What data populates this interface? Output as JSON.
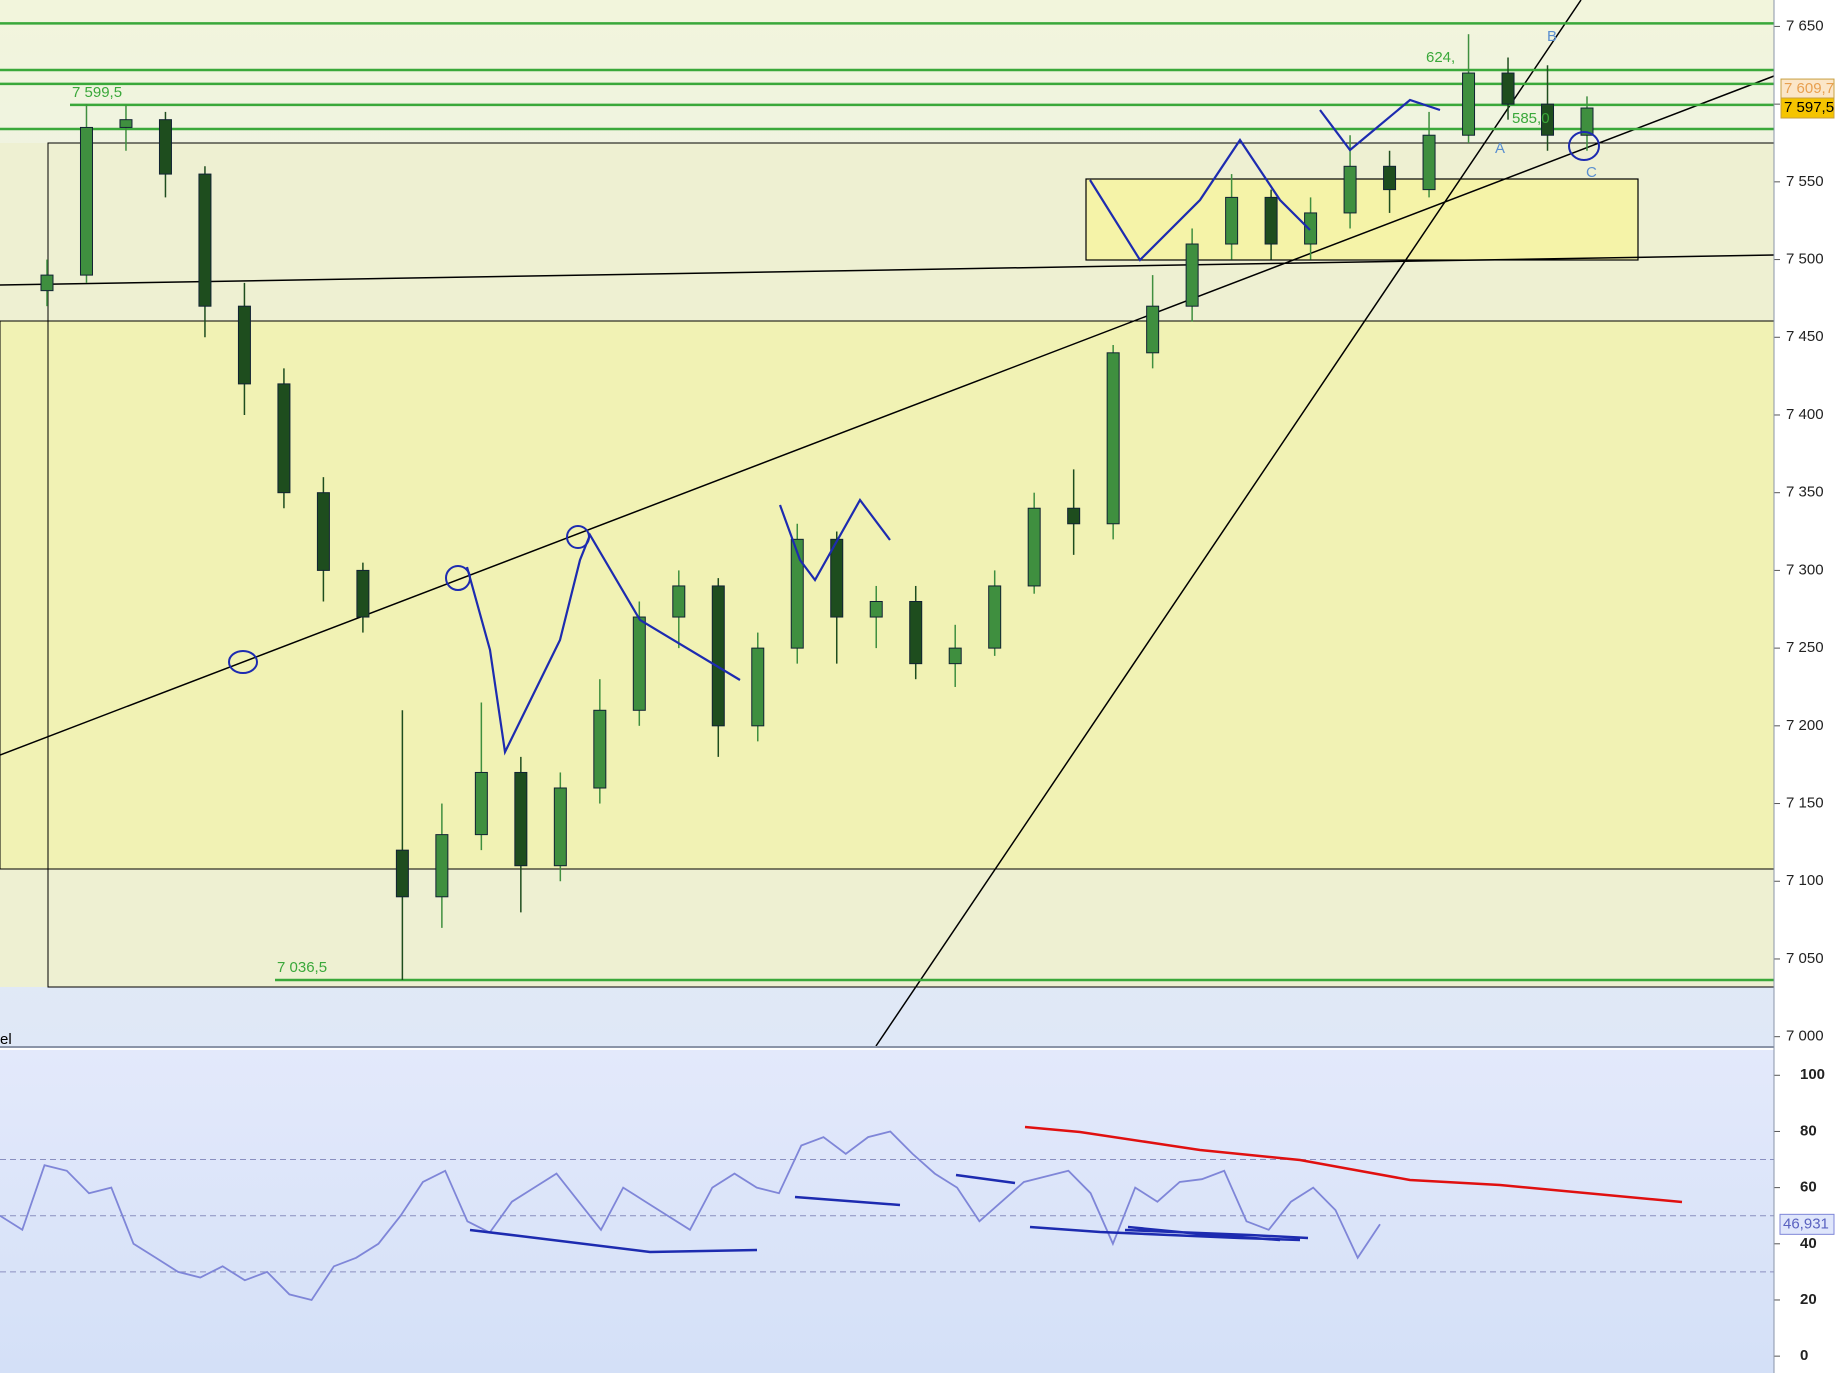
{
  "chart_data": [
    {
      "type": "candlestick",
      "open": [
        7480,
        7490,
        7585,
        7590,
        7555,
        7470,
        7420,
        7350,
        7300,
        7120,
        7090,
        7130,
        7170,
        7110,
        7160,
        7210,
        7270,
        7290,
        7200,
        7250,
        7320,
        7270,
        7280,
        7240,
        7250,
        7290,
        7340,
        7330,
        7440,
        7470,
        7510,
        7540,
        7510,
        7530,
        7560,
        7545,
        7580,
        7620,
        7600,
        7580
      ],
      "high": [
        7500,
        7600,
        7599.5,
        7595,
        7560,
        7485,
        7430,
        7360,
        7305,
        7210,
        7150,
        7215,
        7180,
        7170,
        7230,
        7280,
        7300,
        7295,
        7260,
        7330,
        7325,
        7290,
        7290,
        7265,
        7300,
        7350,
        7365,
        7445,
        7490,
        7520,
        7555,
        7545,
        7540,
        7580,
        7570,
        7595,
        7645,
        7630,
        7625,
        7605
      ],
      "low": [
        7470,
        7485,
        7570,
        7540,
        7450,
        7400,
        7340,
        7280,
        7260,
        7036.5,
        7070,
        7120,
        7080,
        7100,
        7150,
        7200,
        7250,
        7180,
        7190,
        7240,
        7240,
        7250,
        7230,
        7225,
        7245,
        7285,
        7310,
        7320,
        7430,
        7460,
        7500,
        7500,
        7500,
        7520,
        7530,
        7540,
        7575,
        7590,
        7570,
        7570
      ],
      "close": [
        7490,
        7585,
        7590,
        7555,
        7470,
        7420,
        7350,
        7300,
        7270,
        7090,
        7130,
        7170,
        7110,
        7160,
        7210,
        7270,
        7290,
        7200,
        7250,
        7320,
        7270,
        7280,
        7240,
        7250,
        7290,
        7340,
        7330,
        7440,
        7470,
        7510,
        7540,
        7510,
        7530,
        7560,
        7545,
        7580,
        7620,
        7600,
        7580,
        7597.5
      ],
      "up_color": "#3f8f3f",
      "down_color": "#1e4d1e",
      "ylim": [
        6994,
        7667
      ],
      "yticks": [
        {
          "value": 7000,
          "label": "7 000"
        },
        {
          "value": 7050,
          "label": "7 050"
        },
        {
          "value": 7100,
          "label": "7 100"
        },
        {
          "value": 7150,
          "label": "7 150"
        },
        {
          "value": 7200,
          "label": "7 200"
        },
        {
          "value": 7250,
          "label": "7 250"
        },
        {
          "value": 7300,
          "label": "7 300"
        },
        {
          "value": 7350,
          "label": "7 350"
        },
        {
          "value": 7400,
          "label": "7 400"
        },
        {
          "value": 7450,
          "label": "7 450"
        },
        {
          "value": 7500,
          "label": "7 500"
        },
        {
          "value": 7550,
          "label": "7 550"
        },
        {
          "value": 7600,
          "label": "7 600"
        },
        {
          "value": 7650,
          "label": "7 650"
        }
      ],
      "levels": [
        7652,
        7622,
        7613,
        {
          "value": 7599.5,
          "label": "7 599,5"
        },
        7584,
        {
          "value": 7036.5,
          "label": "7 036,5"
        }
      ],
      "level_color": "#3aa83a",
      "price_tags": [
        {
          "value": 7609.7,
          "label": "7 609,7"
        },
        {
          "value": 7597.5,
          "label": "7 597,5"
        }
      ],
      "annotations": [
        "A",
        "B",
        "C",
        "624,",
        "585,0",
        "el"
      ]
    },
    {
      "type": "line",
      "values": [
        50,
        45,
        68,
        66,
        58,
        60,
        40,
        35,
        30,
        28,
        32,
        27,
        30,
        22,
        20,
        32,
        35,
        40,
        50,
        62,
        66,
        48,
        44,
        55,
        60,
        65,
        55,
        45,
        60,
        55,
        50,
        45,
        60,
        65,
        60,
        58,
        75,
        78,
        72,
        78,
        80,
        72,
        65,
        60,
        48,
        55,
        62,
        64,
        66,
        58,
        40,
        60,
        55,
        62,
        63,
        66,
        48,
        45,
        55,
        60,
        52,
        35,
        46.931
      ],
      "color": "#7f86d8",
      "ylim": [
        -6,
        109
      ],
      "yticks": [
        0,
        20,
        40,
        60,
        80,
        100
      ],
      "levels": [
        30,
        50,
        70
      ],
      "value_tag": {
        "value": 46.931,
        "label": "46,931"
      }
    }
  ]
}
